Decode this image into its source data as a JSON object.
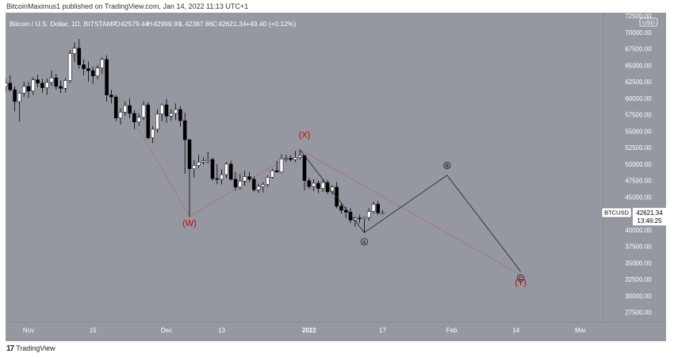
{
  "header": {
    "published_line": "BitcoinMaximus1 published on TradingView.com, Jan 14, 2022 11:13 UTC+1"
  },
  "legend": {
    "symbol_line": "Bitcoin / U.S. Dollar, 1D, BITSTAMP",
    "o_label": "O",
    "o_value": "42579.44",
    "h_label": "H",
    "h_value": "42999.99",
    "l_label": "L",
    "l_value": "42387.86",
    "c_label": "C",
    "c_value": "42621.34",
    "change": "+49.40 (+0.12%)"
  },
  "currency_badge": "USD",
  "price_label": {
    "symbol": "BTCUSD",
    "price": "42621.34",
    "countdown": "13:46:25"
  },
  "footer": {
    "brand": "TradingView"
  },
  "colors": {
    "background": "#9598a1",
    "up": "#ffffff",
    "down": "#000000",
    "wave_label": "#cc0000",
    "dotted_line": "#b06a6a"
  },
  "chart_data": {
    "type": "candlestick",
    "symbol": "BTCUSD",
    "interval": "1D",
    "x_ticks": [
      "Nov",
      "15",
      "Dec",
      "13",
      "2022",
      "17",
      "Feb",
      "14",
      "Mar"
    ],
    "y_ticks": [
      72500,
      70000,
      67500,
      65000,
      62500,
      60000,
      57500,
      55000,
      52500,
      50000,
      47500,
      45000,
      42500,
      40000,
      37500,
      35000,
      32500,
      30000,
      27500
    ],
    "ylim": [
      26000,
      73000
    ],
    "x_range_days": [
      -5,
      125
    ],
    "candles": [
      {
        "d": -5,
        "o": 61800,
        "h": 63000,
        "l": 60800,
        "c": 62300
      },
      {
        "d": -4,
        "o": 62300,
        "h": 63500,
        "l": 61000,
        "c": 61300
      },
      {
        "d": -3,
        "o": 61300,
        "h": 61800,
        "l": 58000,
        "c": 59500
      },
      {
        "d": -2,
        "o": 59500,
        "h": 61000,
        "l": 56500,
        "c": 60800
      },
      {
        "d": -1,
        "o": 60800,
        "h": 62500,
        "l": 60200,
        "c": 61800
      },
      {
        "d": 0,
        "o": 61800,
        "h": 62500,
        "l": 60000,
        "c": 61100
      },
      {
        "d": 1,
        "o": 61100,
        "h": 63200,
        "l": 60500,
        "c": 62800
      },
      {
        "d": 2,
        "o": 62800,
        "h": 63600,
        "l": 61700,
        "c": 62300
      },
      {
        "d": 3,
        "o": 62300,
        "h": 63000,
        "l": 60800,
        "c": 61600
      },
      {
        "d": 4,
        "o": 61600,
        "h": 63000,
        "l": 60500,
        "c": 62400
      },
      {
        "d": 5,
        "o": 62400,
        "h": 64200,
        "l": 61900,
        "c": 63100
      },
      {
        "d": 6,
        "o": 63100,
        "h": 63700,
        "l": 61300,
        "c": 61800
      },
      {
        "d": 7,
        "o": 61800,
        "h": 62700,
        "l": 60800,
        "c": 61500
      },
      {
        "d": 8,
        "o": 61500,
        "h": 63100,
        "l": 60900,
        "c": 62700
      },
      {
        "d": 9,
        "o": 62700,
        "h": 67300,
        "l": 62300,
        "c": 66800
      },
      {
        "d": 10,
        "o": 66800,
        "h": 68500,
        "l": 65500,
        "c": 67600
      },
      {
        "d": 11,
        "o": 67600,
        "h": 69000,
        "l": 64500,
        "c": 65100
      },
      {
        "d": 12,
        "o": 65100,
        "h": 65900,
        "l": 63500,
        "c": 64500
      },
      {
        "d": 13,
        "o": 64500,
        "h": 65600,
        "l": 62500,
        "c": 64200
      },
      {
        "d": 14,
        "o": 64200,
        "h": 64800,
        "l": 62200,
        "c": 63400
      },
      {
        "d": 15,
        "o": 63400,
        "h": 65000,
        "l": 62900,
        "c": 64600
      },
      {
        "d": 16,
        "o": 64600,
        "h": 66200,
        "l": 63700,
        "c": 65900
      },
      {
        "d": 17,
        "o": 65900,
        "h": 66500,
        "l": 59500,
        "c": 60500
      },
      {
        "d": 18,
        "o": 60500,
        "h": 61300,
        "l": 59200,
        "c": 60200
      },
      {
        "d": 19,
        "o": 60200,
        "h": 60500,
        "l": 56500,
        "c": 57000
      },
      {
        "d": 20,
        "o": 57000,
        "h": 58500,
        "l": 56000,
        "c": 57900
      },
      {
        "d": 21,
        "o": 57900,
        "h": 59500,
        "l": 57300,
        "c": 58900
      },
      {
        "d": 22,
        "o": 58900,
        "h": 60000,
        "l": 57000,
        "c": 57700
      },
      {
        "d": 23,
        "o": 57700,
        "h": 58200,
        "l": 55300,
        "c": 56400
      },
      {
        "d": 24,
        "o": 56400,
        "h": 57700,
        "l": 55800,
        "c": 57100
      },
      {
        "d": 25,
        "o": 57100,
        "h": 59600,
        "l": 56700,
        "c": 59000
      },
      {
        "d": 26,
        "o": 59000,
        "h": 59400,
        "l": 53800,
        "c": 54000
      },
      {
        "d": 27,
        "o": 54000,
        "h": 55800,
        "l": 53200,
        "c": 55300
      },
      {
        "d": 28,
        "o": 55300,
        "h": 58300,
        "l": 54800,
        "c": 57600
      },
      {
        "d": 29,
        "o": 57600,
        "h": 59200,
        "l": 56500,
        "c": 59000
      },
      {
        "d": 30,
        "o": 59000,
        "h": 59900,
        "l": 56300,
        "c": 57300
      },
      {
        "d": 31,
        "o": 57300,
        "h": 58300,
        "l": 56600,
        "c": 57700
      },
      {
        "d": 32,
        "o": 57700,
        "h": 59200,
        "l": 56700,
        "c": 58300
      },
      {
        "d": 33,
        "o": 58300,
        "h": 58800,
        "l": 55700,
        "c": 56600
      },
      {
        "d": 34,
        "o": 56600,
        "h": 57800,
        "l": 48500,
        "c": 53700
      },
      {
        "d": 35,
        "o": 53700,
        "h": 53800,
        "l": 42000,
        "c": 49300
      },
      {
        "d": 36,
        "o": 49300,
        "h": 50600,
        "l": 48000,
        "c": 49800
      },
      {
        "d": 37,
        "o": 49800,
        "h": 51400,
        "l": 49400,
        "c": 50300
      },
      {
        "d": 38,
        "o": 50300,
        "h": 51000,
        "l": 49900,
        "c": 50500
      },
      {
        "d": 39,
        "o": 50500,
        "h": 51900,
        "l": 50100,
        "c": 50700
      },
      {
        "d": 40,
        "o": 50700,
        "h": 51000,
        "l": 47500,
        "c": 47800
      },
      {
        "d": 41,
        "o": 47800,
        "h": 50000,
        "l": 47000,
        "c": 47700
      },
      {
        "d": 42,
        "o": 47700,
        "h": 49200,
        "l": 46900,
        "c": 48400
      },
      {
        "d": 43,
        "o": 48400,
        "h": 50300,
        "l": 47900,
        "c": 50000
      },
      {
        "d": 44,
        "o": 50000,
        "h": 50500,
        "l": 47500,
        "c": 47700
      },
      {
        "d": 45,
        "o": 47700,
        "h": 48800,
        "l": 46000,
        "c": 46500
      },
      {
        "d": 46,
        "o": 46500,
        "h": 48500,
        "l": 46100,
        "c": 47400
      },
      {
        "d": 47,
        "o": 47400,
        "h": 49000,
        "l": 46700,
        "c": 48100
      },
      {
        "d": 48,
        "o": 48100,
        "h": 48800,
        "l": 47300,
        "c": 47700
      },
      {
        "d": 49,
        "o": 47700,
        "h": 48100,
        "l": 45800,
        "c": 46100
      },
      {
        "d": 50,
        "o": 46100,
        "h": 47000,
        "l": 45600,
        "c": 46600
      },
      {
        "d": 51,
        "o": 46600,
        "h": 47300,
        "l": 45700,
        "c": 46900
      },
      {
        "d": 52,
        "o": 46900,
        "h": 48300,
        "l": 46500,
        "c": 48000
      },
      {
        "d": 53,
        "o": 48000,
        "h": 49300,
        "l": 47800,
        "c": 49000
      },
      {
        "d": 54,
        "o": 49000,
        "h": 50500,
        "l": 48700,
        "c": 48800
      },
      {
        "d": 55,
        "o": 48800,
        "h": 51500,
        "l": 48600,
        "c": 50800
      },
      {
        "d": 56,
        "o": 50800,
        "h": 51400,
        "l": 50300,
        "c": 50900
      },
      {
        "d": 57,
        "o": 50900,
        "h": 51300,
        "l": 50400,
        "c": 50700
      },
      {
        "d": 58,
        "o": 50700,
        "h": 52000,
        "l": 50300,
        "c": 51000
      },
      {
        "d": 59,
        "o": 51000,
        "h": 52100,
        "l": 50700,
        "c": 51300
      },
      {
        "d": 60,
        "o": 51300,
        "h": 51400,
        "l": 46000,
        "c": 47500
      },
      {
        "d": 61,
        "o": 47500,
        "h": 47900,
        "l": 46200,
        "c": 46600
      },
      {
        "d": 62,
        "o": 46600,
        "h": 47700,
        "l": 45900,
        "c": 47100
      },
      {
        "d": 63,
        "o": 47100,
        "h": 47500,
        "l": 45600,
        "c": 46300
      },
      {
        "d": 64,
        "o": 46300,
        "h": 47600,
        "l": 45800,
        "c": 47200
      },
      {
        "d": 65,
        "o": 47200,
        "h": 47600,
        "l": 45400,
        "c": 45800
      },
      {
        "d": 66,
        "o": 45800,
        "h": 46800,
        "l": 45400,
        "c": 46500
      },
      {
        "d": 67,
        "o": 46500,
        "h": 47300,
        "l": 43300,
        "c": 43600
      },
      {
        "d": 68,
        "o": 43600,
        "h": 44000,
        "l": 42500,
        "c": 43000
      },
      {
        "d": 69,
        "o": 43000,
        "h": 43500,
        "l": 41800,
        "c": 42700
      },
      {
        "d": 70,
        "o": 42700,
        "h": 43300,
        "l": 41000,
        "c": 41500
      },
      {
        "d": 71,
        "o": 41500,
        "h": 42000,
        "l": 40500,
        "c": 41800
      },
      {
        "d": 72,
        "o": 41800,
        "h": 42300,
        "l": 41000,
        "c": 41700
      },
      {
        "d": 73,
        "o": 41700,
        "h": 42000,
        "l": 39600,
        "c": 41900
      },
      {
        "d": 74,
        "o": 41900,
        "h": 43300,
        "l": 41400,
        "c": 42800
      },
      {
        "d": 75,
        "o": 42800,
        "h": 44300,
        "l": 42500,
        "c": 43900
      },
      {
        "d": 76,
        "o": 43900,
        "h": 44400,
        "l": 42300,
        "c": 42600
      },
      {
        "d": 77,
        "o": 42600,
        "h": 43000,
        "l": 42400,
        "c": 42621
      }
    ],
    "wave_labels": [
      {
        "text": "(W)",
        "d": 35,
        "price": 40600
      },
      {
        "text": "(X)",
        "d": 60,
        "price": 54000
      },
      {
        "text": "(Y)",
        "d": 107,
        "price": 31600
      }
    ],
    "circle_labels": [
      {
        "text": "A",
        "d": 73,
        "price": 38200
      },
      {
        "text": "B",
        "d": 91,
        "price": 49800
      },
      {
        "text": "C",
        "d": 107,
        "price": 32700
      }
    ],
    "dotted_path": [
      {
        "d": 24,
        "price": 55300
      },
      {
        "d": 35,
        "price": 42000
      },
      {
        "d": 59,
        "price": 52200
      },
      {
        "d": 107,
        "price": 33200
      }
    ],
    "solid_path": [
      {
        "d": 59,
        "price": 52200
      },
      {
        "d": 73,
        "price": 39600
      },
      {
        "d": 91,
        "price": 48300
      },
      {
        "d": 107,
        "price": 33700
      }
    ],
    "current_price": 42621.34
  }
}
